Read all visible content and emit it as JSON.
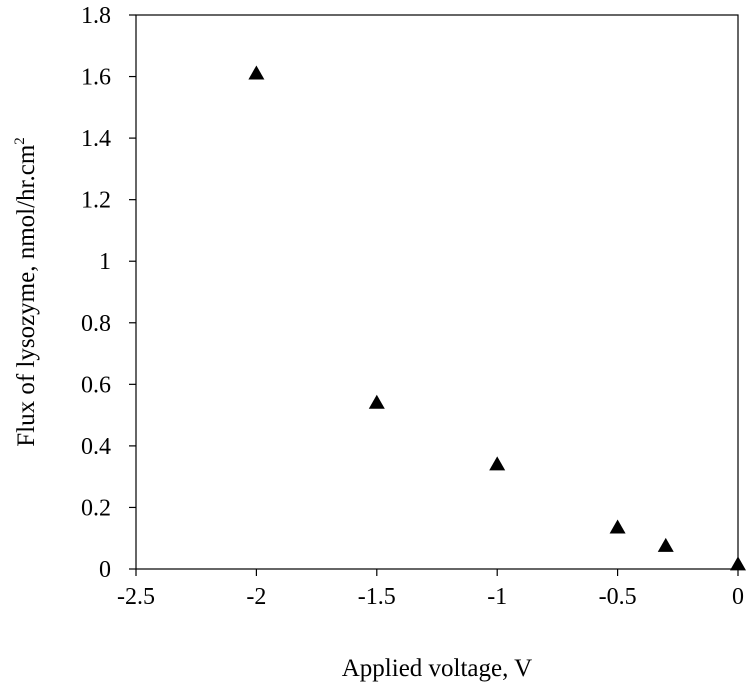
{
  "chart_data": {
    "type": "scatter",
    "title": "",
    "xlabel": "Applied voltage, V",
    "ylabel": "Flux of lysozyme, nmol/hr.cm",
    "ylabel_superscript": "2",
    "xlim": [
      -2.5,
      0
    ],
    "ylim": [
      0,
      1.8
    ],
    "x_ticks": [
      "-2.5",
      "-2",
      "-1.5",
      "-1",
      "-0.5",
      "0"
    ],
    "y_ticks": [
      "0",
      "0.2",
      "0.4",
      "0.6",
      "0.8",
      "1",
      "1.2",
      "1.4",
      "1.6",
      "1.8"
    ],
    "grid": false,
    "marker": "triangle",
    "marker_color": "#000000",
    "series": [
      {
        "points": [
          {
            "x": -2.0,
            "y": 1.61
          },
          {
            "x": -1.5,
            "y": 0.54
          },
          {
            "x": -1.0,
            "y": 0.34
          },
          {
            "x": -0.5,
            "y": 0.135
          },
          {
            "x": -0.3,
            "y": 0.075
          },
          {
            "x": 0.0,
            "y": 0.015
          }
        ]
      }
    ]
  }
}
